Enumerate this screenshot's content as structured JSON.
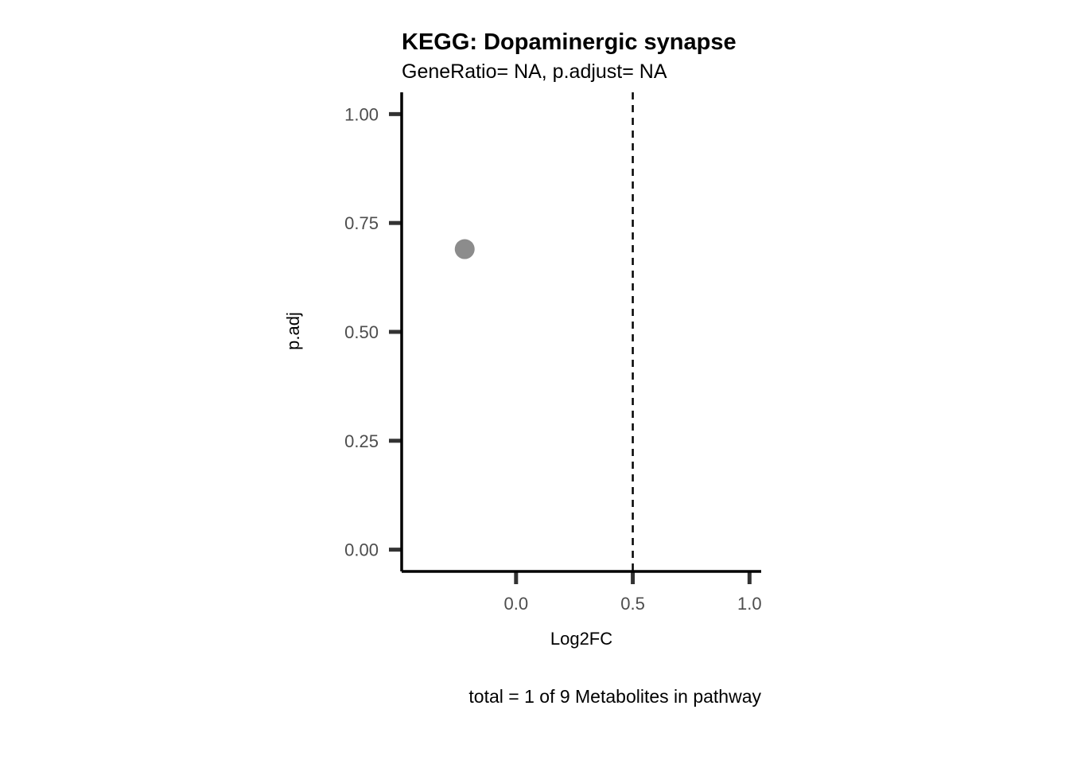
{
  "chart_data": {
    "type": "scatter",
    "title": "KEGG: Dopaminergic synapse",
    "subtitle": "GeneRatio= NA, p.adjust= NA",
    "xlabel": "Log2FC",
    "ylabel": "p.adj",
    "caption": "total = 1 of 9 Metabolites in pathway",
    "xlim": [
      -0.49,
      1.05
    ],
    "ylim": [
      -0.05,
      1.05
    ],
    "xticks": [
      0.0,
      0.5,
      1.0
    ],
    "xtick_labels": [
      "0.0",
      "0.5",
      "1.0"
    ],
    "yticks": [
      0.0,
      0.25,
      0.5,
      0.75,
      1.0
    ],
    "ytick_labels": [
      "0.00",
      "0.25",
      "0.50",
      "0.75",
      "1.00"
    ],
    "reference_line": {
      "x": 0.5,
      "style": "dashed"
    },
    "points": [
      {
        "x": -0.22,
        "y": 0.69
      }
    ],
    "point_color": "#8c8c8c",
    "grid": false,
    "legend": "none"
  }
}
